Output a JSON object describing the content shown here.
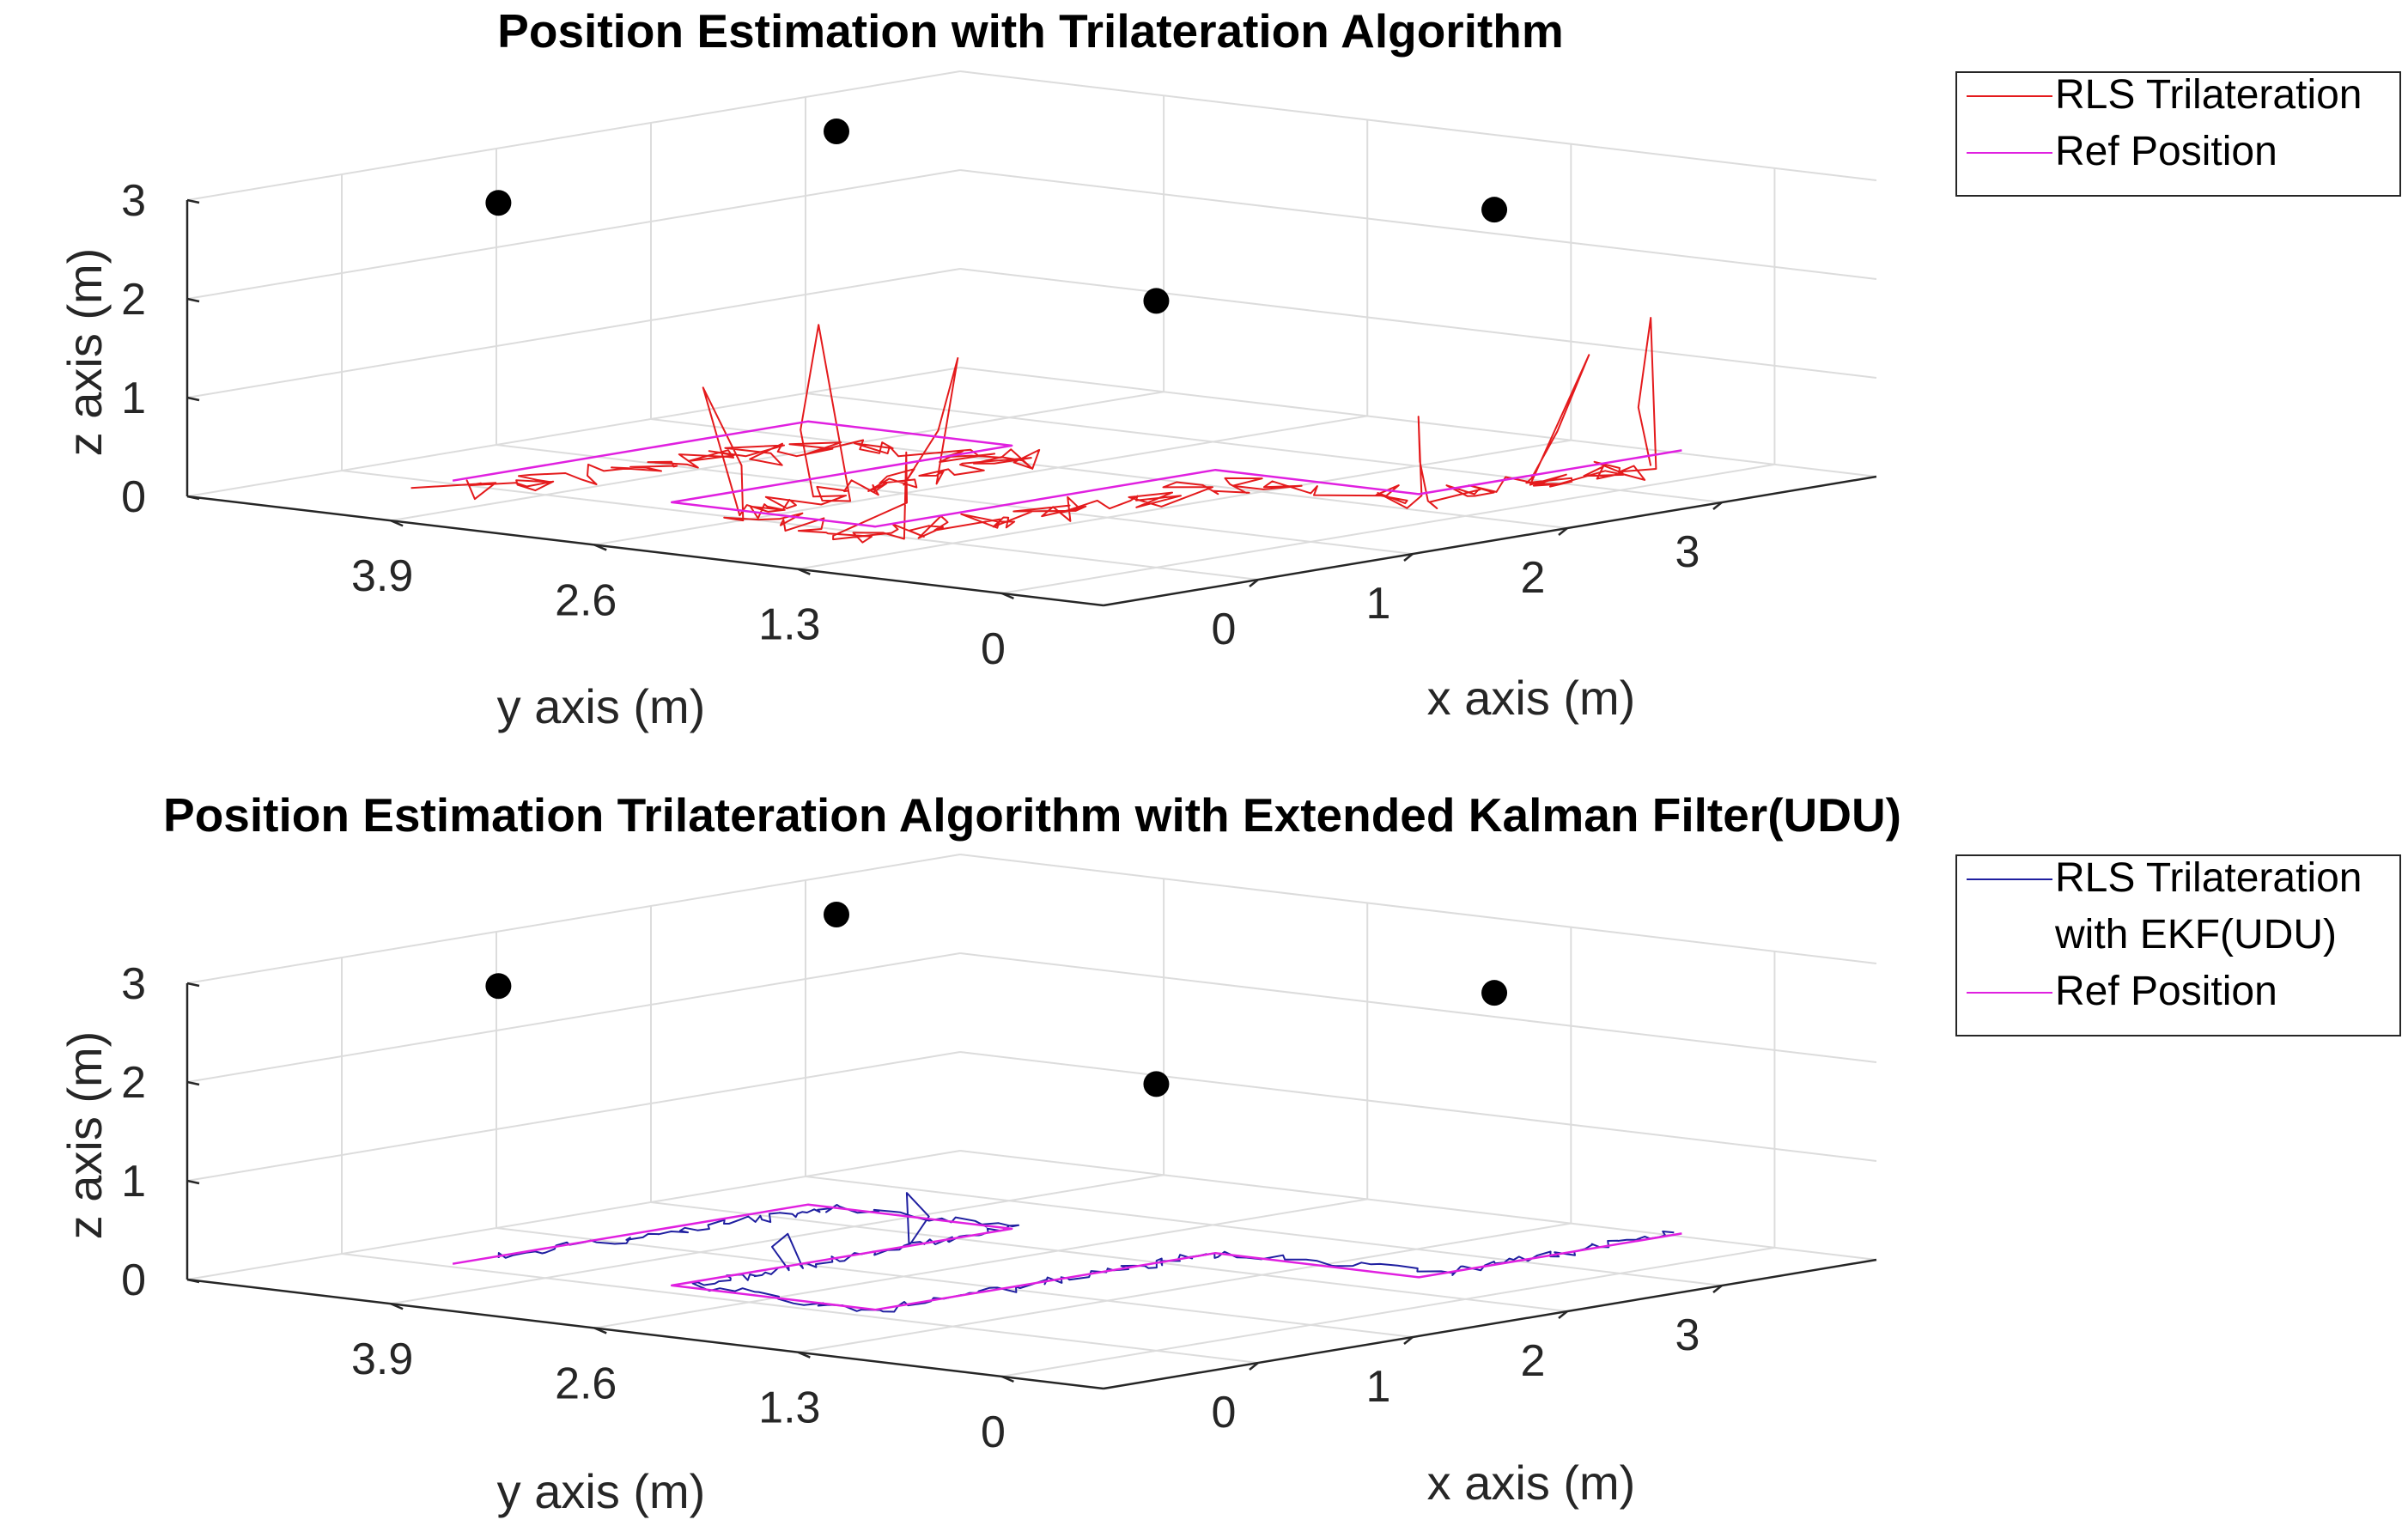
{
  "colors": {
    "estimate_top": "#e41a1c",
    "estimate_bottom": "#1f1fa0",
    "reference": "#e020e0",
    "anchor": "#000000",
    "grid": "#dcdcdc",
    "axis": "#262626"
  },
  "chart_data": [
    {
      "type": "line",
      "projection": "3d",
      "title": "Position Estimation with Trilateration Algorithm",
      "xlabel": "x axis (m)",
      "ylabel": "y axis (m)",
      "zlabel": "z axis (m)",
      "xlim": [
        -1,
        4
      ],
      "ylim": [
        -0.65,
        5.2
      ],
      "zlim": [
        0,
        3
      ],
      "xticks": [
        "0",
        "1",
        "2",
        "3"
      ],
      "yticks": [
        "3.9",
        "2.6",
        "1.3",
        "0"
      ],
      "zticks": [
        "0",
        "1",
        "2",
        "3"
      ],
      "grid": true,
      "legend": {
        "placement": "outside-top-right",
        "entries": [
          "RLS Trilateration",
          "Ref Position"
        ]
      },
      "anchors": [
        [
          3.2,
          5.2,
          2.6
        ],
        [
          0.0,
          4.2,
          2.9
        ],
        [
          3.2,
          1.0,
          2.6
        ],
        [
          0.0,
          0.0,
          2.7
        ]
      ],
      "series": [
        {
          "name": "RLS Trilateration",
          "color_key": "estimate_top",
          "seed": 7,
          "amp": 0.16,
          "z": 0.15,
          "noise_z": 0.08,
          "path": [
            [
              -0.5,
              4.05
            ],
            [
              0.2,
              3.9
            ],
            [
              0.9,
              3.75
            ],
            [
              1.6,
              3.6
            ],
            [
              1.8,
              2.6
            ],
            [
              1.1,
              2.55
            ],
            [
              0.4,
              2.5
            ],
            [
              -0.3,
              2.4
            ],
            [
              -0.4,
              1.4
            ],
            [
              0.3,
              1.35
            ],
            [
              1.0,
              1.25
            ],
            [
              1.8,
              1.2
            ],
            [
              2.0,
              0.2
            ],
            [
              2.7,
              0.15
            ],
            [
              3.3,
              0.1
            ]
          ],
          "spikes": [
            {
              "at": 5,
              "z": 1.3,
              "dx": 0.2,
              "dy": 0.0
            },
            {
              "at": 6,
              "z": 1.85,
              "dx": 0.05,
              "dy": 0.1
            },
            {
              "at": 7,
              "z": 1.5,
              "dx": -0.2,
              "dy": 0.0
            },
            {
              "at": 8,
              "z": 1.0,
              "dx": 0.1,
              "dy": -0.1
            },
            {
              "at": 12,
              "z": 0.95,
              "dx": 0.0,
              "dy": 0.1
            },
            {
              "at": 13,
              "z": 1.4,
              "dx": 0.15,
              "dy": -0.1
            },
            {
              "at": 14,
              "z": 1.65,
              "dx": 0.0,
              "dy": 0.0
            }
          ]
        },
        {
          "name": "Ref Position",
          "color_key": "reference",
          "z": 0.3,
          "path": [
            [
              -0.6,
              3.9
            ],
            [
              1.7,
              3.9
            ],
            [
              1.7,
              2.6
            ],
            [
              -0.5,
              2.6
            ],
            [
              -0.5,
              1.3
            ],
            [
              1.7,
              1.3
            ],
            [
              1.7,
              0.0
            ],
            [
              3.4,
              0.0
            ]
          ]
        }
      ]
    },
    {
      "type": "line",
      "projection": "3d",
      "title": "Position Estimation Trilateration Algorithm with Extended Kalman Filter(UDU)",
      "xlabel": "x axis (m)",
      "ylabel": "y axis (m)",
      "zlabel": "z axis (m)",
      "xlim": [
        -1,
        4
      ],
      "ylim": [
        -0.65,
        5.2
      ],
      "zlim": [
        0,
        3
      ],
      "xticks": [
        "0",
        "1",
        "2",
        "3"
      ],
      "yticks": [
        "3.9",
        "2.6",
        "1.3",
        "0"
      ],
      "zticks": [
        "0",
        "1",
        "2",
        "3"
      ],
      "grid": true,
      "legend": {
        "placement": "outside-top-right",
        "entries": [
          "RLS Trilateration\nwith EKF(UDU)",
          "Ref Position"
        ]
      },
      "anchors": [
        [
          3.2,
          5.2,
          2.6
        ],
        [
          0.0,
          4.2,
          2.9
        ],
        [
          3.2,
          1.0,
          2.6
        ],
        [
          0.0,
          0.0,
          2.7
        ]
      ],
      "series": [
        {
          "name": "RLS Trilateration\nwith EKF(UDU)",
          "color_key": "estimate_bottom",
          "seed": 11,
          "amp": 0.035,
          "z": 0.3,
          "noise_z": 0.04,
          "path": [
            [
              -0.3,
              3.9
            ],
            [
              0.4,
              3.82
            ],
            [
              1.2,
              3.78
            ],
            [
              1.7,
              3.7
            ],
            [
              1.75,
              2.6
            ],
            [
              1.0,
              2.58
            ],
            [
              0.2,
              2.55
            ],
            [
              -0.45,
              2.5
            ],
            [
              -0.5,
              1.3
            ],
            [
              0.4,
              1.28
            ],
            [
              1.2,
              1.3
            ],
            [
              1.7,
              1.25
            ],
            [
              1.9,
              0.0
            ],
            [
              2.7,
              0.02
            ],
            [
              3.4,
              0.05
            ]
          ],
          "spikes": [
            {
              "at": 5,
              "z": 0.85,
              "dx": 0.0,
              "dy": 0.0
            },
            {
              "at": 6,
              "z": 0.65,
              "dx": 0.0,
              "dy": 0.0
            }
          ]
        },
        {
          "name": "Ref Position",
          "color_key": "reference",
          "z": 0.3,
          "path": [
            [
              -0.6,
              3.9
            ],
            [
              1.7,
              3.9
            ],
            [
              1.7,
              2.6
            ],
            [
              -0.5,
              2.6
            ],
            [
              -0.5,
              1.3
            ],
            [
              1.7,
              1.3
            ],
            [
              1.7,
              0.0
            ],
            [
              3.4,
              0.0
            ]
          ]
        }
      ]
    }
  ]
}
